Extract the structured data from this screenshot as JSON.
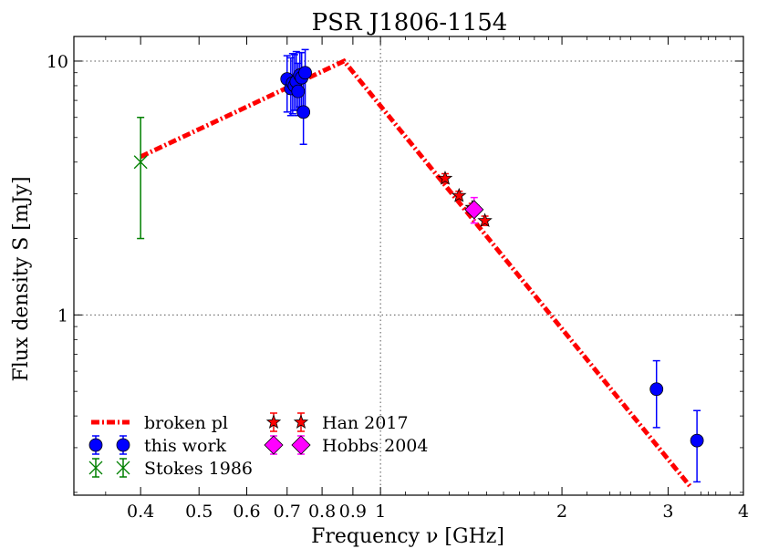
{
  "chart_data": {
    "type": "scatter",
    "title": "PSR J1806-1154",
    "xlabel": "Frequency ν [GHz]",
    "ylabel": "Flux density S [mJy]",
    "xscale": "log",
    "yscale": "log",
    "xlim": [
      0.31,
      4.0
    ],
    "ylim": [
      0.195,
      12.5
    ],
    "grid": "dotted at x=1, y=1, y=10",
    "legend_position": "lower-left",
    "x_ticks": [
      0.4,
      0.5,
      0.6,
      0.7,
      0.8,
      0.9,
      1,
      2,
      3,
      4
    ],
    "x_tick_labels": [
      "0.4",
      "0.5",
      "0.6",
      "0.7",
      "0.8",
      "0.9",
      "1",
      "2",
      "3",
      "4"
    ],
    "y_ticks": [
      1,
      10
    ],
    "y_tick_labels": [
      "1",
      "10"
    ],
    "series": [
      {
        "name": "broken pl",
        "kind": "line",
        "color": "#ff0000",
        "points": [
          [
            0.4,
            4.2
          ],
          [
            0.87,
            10.0
          ],
          [
            3.27,
            0.21
          ]
        ]
      },
      {
        "name": "this work",
        "kind": "errorbar",
        "marker": "circle",
        "color": "#0000ff",
        "points": [
          {
            "x": 0.7,
            "y": 8.5,
            "yerr": [
              2.2,
              2.0
            ]
          },
          {
            "x": 0.71,
            "y": 7.8,
            "yerr": [
              1.7,
              2.5
            ]
          },
          {
            "x": 0.715,
            "y": 8.2,
            "yerr": [
              2.0,
              2.5
            ]
          },
          {
            "x": 0.72,
            "y": 8.0,
            "yerr": [
              1.6,
              2.6
            ]
          },
          {
            "x": 0.725,
            "y": 8.3,
            "yerr": [
              1.9,
              2.6
            ]
          },
          {
            "x": 0.73,
            "y": 7.6,
            "yerr": [
              1.5,
              2.2
            ]
          },
          {
            "x": 0.735,
            "y": 8.8,
            "yerr": [
              2.2,
              2.0
            ]
          },
          {
            "x": 0.74,
            "y": 8.6,
            "yerr": [
              2.0,
              2.2
            ]
          },
          {
            "x": 0.745,
            "y": 6.3,
            "yerr": [
              1.6,
              2.0
            ]
          },
          {
            "x": 0.75,
            "y": 9.0,
            "yerr": [
              2.5,
              2.1
            ]
          },
          {
            "x": 2.87,
            "y": 0.51,
            "yerr": [
              0.15,
              0.15
            ]
          },
          {
            "x": 3.35,
            "y": 0.32,
            "yerr": [
              0.1,
              0.1
            ]
          }
        ]
      },
      {
        "name": "Stokes 1986",
        "kind": "errorbar",
        "marker": "x",
        "color": "#008000",
        "points": [
          {
            "x": 0.4,
            "y": 4.0,
            "yerr": [
              2.0,
              2.0
            ]
          }
        ]
      },
      {
        "name": "Han 2017",
        "kind": "errorbar",
        "marker": "star",
        "color": "#ff0000",
        "points": [
          {
            "x": 1.28,
            "y": 3.45,
            "yerr": [
              0.15,
              0.15
            ]
          },
          {
            "x": 1.35,
            "y": 2.95,
            "yerr": [
              0.12,
              0.12
            ]
          },
          {
            "x": 1.42,
            "y": 2.65,
            "yerr": [
              0.1,
              0.1
            ]
          },
          {
            "x": 1.49,
            "y": 2.35,
            "yerr": [
              0.1,
              0.1
            ]
          }
        ]
      },
      {
        "name": "Hobbs 2004",
        "kind": "errorbar",
        "marker": "diamond",
        "color": "#ff00ff",
        "points": [
          {
            "x": 1.43,
            "y": 2.6,
            "yerr": [
              0.3,
              0.3
            ]
          }
        ]
      }
    ]
  }
}
